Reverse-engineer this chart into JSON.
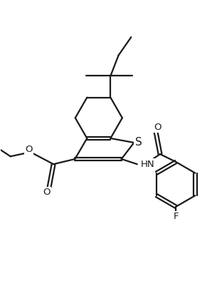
{
  "bg_color": "#ffffff",
  "line_color": "#1a1a1a",
  "line_width": 1.6,
  "fig_width": 3.05,
  "fig_height": 4.08,
  "dpi": 100,
  "font_size": 9.5,
  "xlim": [
    -3.0,
    4.5
  ],
  "ylim": [
    -5.0,
    4.5
  ]
}
